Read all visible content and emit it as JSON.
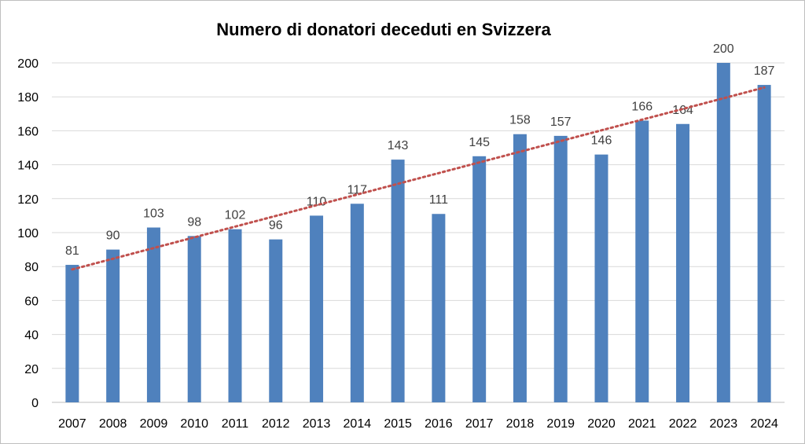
{
  "chart_data": {
    "type": "bar",
    "title": "Numero di donatori deceduti en Svizzera",
    "xlabel": "",
    "ylabel": "",
    "categories": [
      "2007",
      "2008",
      "2009",
      "2010",
      "2011",
      "2012",
      "2013",
      "2014",
      "2015",
      "2016",
      "2017",
      "2018",
      "2019",
      "2020",
      "2021",
      "2022",
      "2023",
      "2024"
    ],
    "values": [
      81,
      90,
      103,
      98,
      102,
      96,
      110,
      117,
      143,
      111,
      145,
      158,
      157,
      146,
      166,
      164,
      200,
      187
    ],
    "ylim": [
      0,
      200
    ],
    "yticks": [
      0,
      20,
      40,
      60,
      80,
      100,
      120,
      140,
      160,
      180,
      200
    ],
    "grid": true,
    "legend": "none",
    "data_labels": true,
    "trendline": "linear",
    "bar_color": "#4f81bd",
    "trendline_color": "#c0504d",
    "gridline_color": "#d9d9d9"
  }
}
